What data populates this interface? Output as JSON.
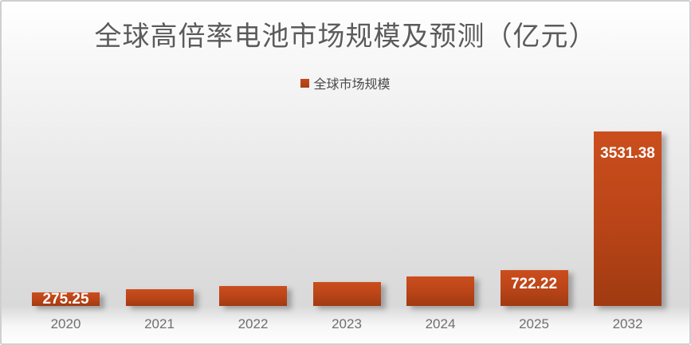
{
  "chart_data": {
    "type": "bar",
    "title": "全球高倍率电池市场规模及预测（亿元）",
    "legend_entries": [
      "全球市场规模"
    ],
    "legend_position": "top",
    "categories": [
      "2020",
      "2021",
      "2022",
      "2023",
      "2024",
      "2025",
      "2032"
    ],
    "series": [
      {
        "name": "全球市场规模",
        "values": [
          275.25,
          334,
          405,
          491,
          596,
          722.22,
          3531.38
        ]
      }
    ],
    "data_labels": [
      "275.25",
      "",
      "",
      "",
      "",
      "722.22",
      "3531.38"
    ],
    "xlabel": "",
    "ylabel": "",
    "ylim": [
      0,
      3531.38
    ],
    "grid": false,
    "y_axis_visible": false,
    "bar_color_top": "#cb4e1d",
    "bar_color_bottom": "#a03a11",
    "data_label_color": "#ffffff",
    "tick_label_color": "#6f6f6f",
    "title_color": "#5b5b5b"
  }
}
